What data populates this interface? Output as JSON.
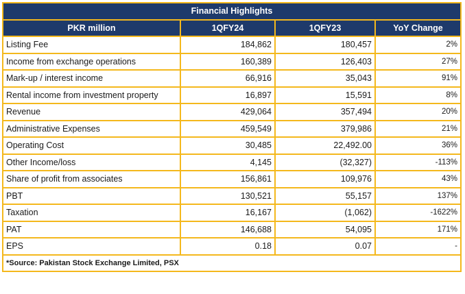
{
  "table": {
    "title": "Financial Highlights",
    "columns": [
      "PKR million",
      "1QFY24",
      "1QFY23",
      "YoY Change"
    ],
    "rows": [
      {
        "label": "Listing Fee",
        "fy24": "184,862",
        "fy23": "180,457",
        "change": "2%"
      },
      {
        "label": "Income from exchange operations",
        "fy24": "160,389",
        "fy23": "126,403",
        "change": "27%"
      },
      {
        "label": "Mark-up / interest income",
        "fy24": "66,916",
        "fy23": "35,043",
        "change": "91%"
      },
      {
        "label": "Rental income from investment property",
        "fy24": "16,897",
        "fy23": "15,591",
        "change": "8%"
      },
      {
        "label": "Revenue",
        "fy24": "429,064",
        "fy23": "357,494",
        "change": "20%"
      },
      {
        "label": "Administrative Expenses",
        "fy24": "459,549",
        "fy23": "379,986",
        "change": "21%"
      },
      {
        "label": "Operating Cost",
        "fy24": "30,485",
        "fy23": "22,492.00",
        "change": "36%"
      },
      {
        "label": "Other Income/loss",
        "fy24": "4,145",
        "fy23": "(32,327)",
        "change": "-113%"
      },
      {
        "label": "Share of profit from associates",
        "fy24": "156,861",
        "fy23": "109,976",
        "change": "43%"
      },
      {
        "label": "PBT",
        "fy24": "130,521",
        "fy23": "55,157",
        "change": "137%"
      },
      {
        "label": "Taxation",
        "fy24": "16,167",
        "fy23": "(1,062)",
        "change": "-1622%"
      },
      {
        "label": "PAT",
        "fy24": "146,688",
        "fy23": "54,095",
        "change": "171%"
      },
      {
        "label": "EPS",
        "fy24": "0.18",
        "fy23": "0.07",
        "change": "-"
      }
    ],
    "footnote": "*Source: Pakistan Stock Exchange Limited, PSX"
  },
  "colors": {
    "header_bg": "#1e3a6b",
    "border": "#f4b81c"
  }
}
